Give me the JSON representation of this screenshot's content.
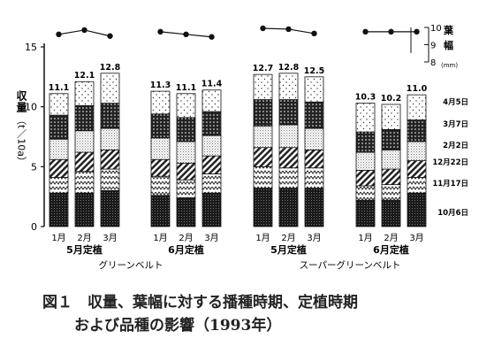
{
  "chart_data": {
    "type": "bar",
    "stacked": true,
    "ylabel_main": "収量",
    "ylabel_unit": "（t／10a）",
    "ylim": [
      0,
      15
    ],
    "yticks": [
      "0",
      "5",
      "10",
      "15"
    ],
    "leaf_axis": {
      "title": "葉幅",
      "unit": "(mm)",
      "ylim": [
        8,
        10
      ],
      "ticks": [
        "8",
        "9",
        "10"
      ]
    },
    "groups": [
      {
        "month_labels": [
          "1月",
          "2月",
          "3月"
        ],
        "planting": "5月定植",
        "totals": [
          "11.1",
          "12.1",
          "12.8"
        ],
        "leaf_width": [
          9.6,
          9.85,
          9.5
        ],
        "variety_index": 0
      },
      {
        "month_labels": [
          "1月",
          "2月",
          "3月"
        ],
        "planting": "6月定植",
        "totals": [
          "11.3",
          "11.1",
          "11.4"
        ],
        "leaf_width": [
          9.75,
          9.6,
          9.45
        ],
        "variety_index": 0
      },
      {
        "month_labels": [
          "1月",
          "2月",
          "3月"
        ],
        "planting": "5月定植",
        "totals": [
          "12.7",
          "12.8",
          "12.5"
        ],
        "leaf_width": [
          9.95,
          9.9,
          9.65
        ],
        "variety_index": 1
      },
      {
        "month_labels": [
          "1月",
          "2月",
          "3月"
        ],
        "planting": "6月定植",
        "totals": [
          "10.3",
          "10.2",
          "11.0"
        ],
        "leaf_width": [
          9.75,
          9.75,
          9.75
        ],
        "variety_index": 1
      }
    ],
    "varieties": [
      "グリーンベルト",
      "スーパーグリーンベルト"
    ],
    "harvest_periods": [
      "10月6日",
      "11月17日",
      "12月22日",
      "2月2日",
      "3月7日",
      "4月5日"
    ],
    "segments": [
      [
        [
          2.8,
          1.3,
          1.5,
          1.7,
          2.0,
          1.8
        ],
        [
          2.8,
          1.8,
          1.6,
          1.8,
          2.1,
          2.0
        ],
        [
          3.0,
          1.8,
          1.6,
          1.8,
          2.1,
          2.5
        ]
      ],
      [
        [
          2.6,
          1.6,
          1.4,
          1.8,
          2.0,
          1.9
        ],
        [
          2.4,
          1.5,
          1.4,
          1.8,
          2.0,
          2.0
        ],
        [
          2.8,
          1.6,
          1.5,
          1.7,
          2.0,
          1.8
        ]
      ],
      [
        [
          3.2,
          1.8,
          1.6,
          1.8,
          2.2,
          2.1
        ],
        [
          3.2,
          1.7,
          1.7,
          1.9,
          2.1,
          2.2
        ],
        [
          3.2,
          1.7,
          1.5,
          1.8,
          2.2,
          2.1
        ]
      ],
      [
        [
          2.2,
          1.2,
          1.3,
          1.5,
          1.7,
          2.4
        ],
        [
          2.2,
          1.3,
          1.3,
          1.6,
          1.7,
          2.1
        ],
        [
          2.8,
          1.3,
          1.4,
          1.6,
          1.8,
          2.1
        ]
      ]
    ]
  },
  "caption": {
    "line1": "図１　収量、葉幅に対する播種時期、定植時期",
    "line2": "および品種の影響（1993年）"
  }
}
